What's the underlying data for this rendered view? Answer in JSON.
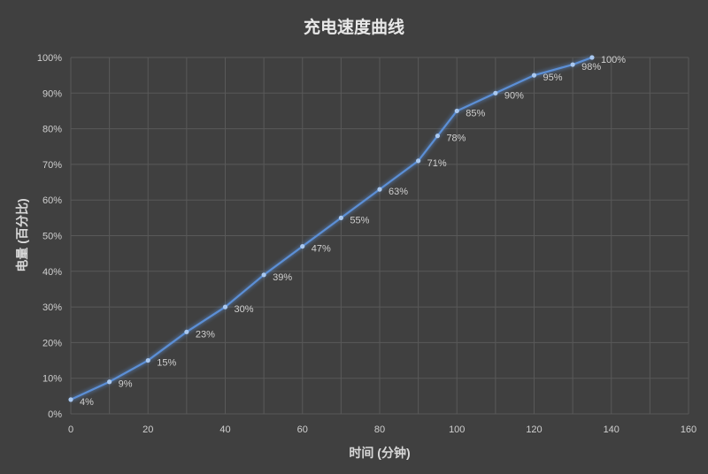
{
  "chart_data": {
    "type": "line",
    "title": "充电速度曲线",
    "xlabel": "时间 (分钟)",
    "ylabel": "电量 (百分比)",
    "xlim": [
      0,
      160
    ],
    "ylim": [
      0,
      100
    ],
    "x_ticks": [
      "0",
      "20",
      "40",
      "60",
      "80",
      "100",
      "120",
      "140",
      "160"
    ],
    "y_ticks": [
      "0%",
      "10%",
      "20%",
      "30%",
      "40%",
      "50%",
      "60%",
      "70%",
      "80%",
      "90%",
      "100%"
    ],
    "grid": true,
    "legend": "none",
    "line_color": "#5b8fd6",
    "background": "#404040",
    "series": [
      {
        "x": [
          0,
          10,
          20,
          30,
          40,
          50,
          60,
          70,
          80,
          90,
          95,
          100,
          110,
          120,
          130,
          135
        ],
        "y": [
          4,
          9,
          15,
          23,
          30,
          39,
          47,
          55,
          63,
          71,
          78,
          85,
          90,
          95,
          98,
          100
        ],
        "labels": [
          "4%",
          "9%",
          "15%",
          "23%",
          "30%",
          "39%",
          "47%",
          "55%",
          "63%",
          "71%",
          "78%",
          "85%",
          "90%",
          "95%",
          "98%",
          "100%"
        ]
      }
    ]
  }
}
